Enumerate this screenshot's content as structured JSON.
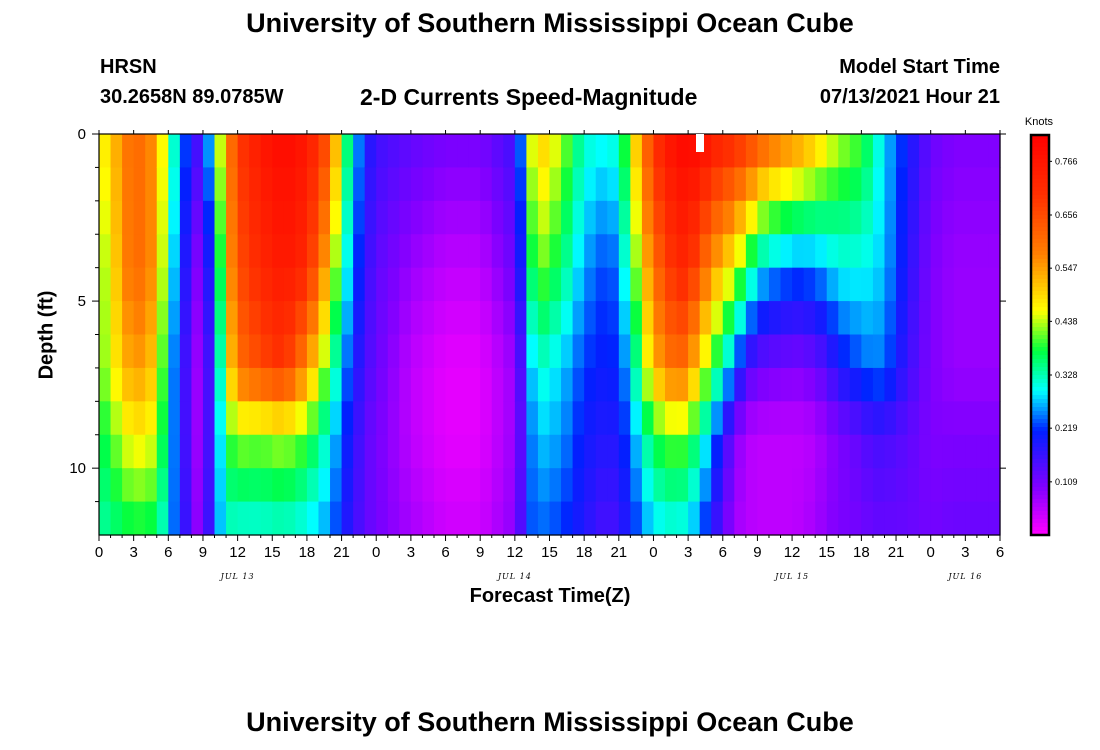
{
  "header": {
    "title": "University of Southern Mississippi Ocean Cube",
    "station": "HRSN",
    "coordinates": "30.2658N  89.0785W",
    "subtitle": "2-D Currents Speed-Magnitude",
    "model_start_label": "Model Start Time",
    "model_start_value": "07/13/2021 Hour 21"
  },
  "footer": {
    "title": "University of Southern Mississippi Ocean Cube"
  },
  "chart_data": {
    "type": "heatmap",
    "title": "2-D Currents Speed-Magnitude",
    "xlabel": "Forecast Time(Z)",
    "ylabel": "Depth (ft)",
    "x_range_hours": [
      0,
      78
    ],
    "y_range_ft": [
      0,
      12
    ],
    "x_ticks": [
      "0",
      "3",
      "6",
      "9",
      "12",
      "15",
      "18",
      "21",
      "0",
      "3",
      "6",
      "9",
      "12",
      "15",
      "18",
      "21",
      "0",
      "3",
      "6",
      "9",
      "12",
      "15",
      "18",
      "21",
      "0",
      "3",
      "6"
    ],
    "y_ticks": [
      "0",
      "5",
      "10"
    ],
    "date_labels": [
      {
        "label": "JUL 13",
        "hour": 12
      },
      {
        "label": "JUL 14",
        "hour": 36
      },
      {
        "label": "JUL 15",
        "hour": 60
      },
      {
        "label": "JUL 16",
        "hour": 75
      }
    ],
    "colorbar": {
      "title": "Knots",
      "min": 0.0,
      "max": 0.82,
      "ticks": [
        "0.766",
        "0.656",
        "0.547",
        "0.438",
        "0.328",
        "0.219",
        "0.109"
      ]
    },
    "profiles": {
      "hours": [
        0,
        3,
        5,
        6,
        7,
        8.5,
        9,
        10,
        11,
        12,
        14,
        16,
        18,
        20,
        21,
        22,
        23,
        24,
        27,
        30,
        33,
        36,
        36.5,
        37,
        38,
        40,
        42,
        44,
        45,
        46,
        48,
        50,
        51,
        52,
        53,
        55,
        56,
        57,
        58,
        60,
        61,
        62,
        63,
        64,
        66,
        67,
        68,
        70,
        72,
        74,
        75,
        76,
        78
      ],
      "depths_ft": [
        0,
        4,
        7,
        9,
        12
      ],
      "speed_knots": [
        [
          0.45,
          0.4,
          0.4,
          0.36,
          0.33
        ],
        [
          0.62,
          0.62,
          0.56,
          0.48,
          0.37
        ],
        [
          0.55,
          0.55,
          0.5,
          0.45,
          0.36
        ],
        [
          0.38,
          0.33,
          0.3,
          0.3,
          0.28
        ],
        [
          0.26,
          0.22,
          0.19,
          0.19,
          0.2
        ],
        [
          0.16,
          0.1,
          0.08,
          0.08,
          0.09
        ],
        [
          0.18,
          0.12,
          0.1,
          0.1,
          0.1
        ],
        [
          0.35,
          0.25,
          0.2,
          0.2,
          0.22
        ],
        [
          0.55,
          0.5,
          0.45,
          0.38,
          0.32
        ],
        [
          0.68,
          0.65,
          0.6,
          0.43,
          0.3
        ],
        [
          0.76,
          0.72,
          0.66,
          0.42,
          0.3
        ],
        [
          0.8,
          0.76,
          0.7,
          0.44,
          0.31
        ],
        [
          0.76,
          0.72,
          0.56,
          0.4,
          0.29
        ],
        [
          0.64,
          0.5,
          0.38,
          0.3,
          0.25
        ],
        [
          0.42,
          0.34,
          0.27,
          0.23,
          0.2
        ],
        [
          0.3,
          0.25,
          0.2,
          0.18,
          0.16
        ],
        [
          0.2,
          0.17,
          0.15,
          0.13,
          0.13
        ],
        [
          0.16,
          0.13,
          0.12,
          0.11,
          0.11
        ],
        [
          0.13,
          0.08,
          0.05,
          0.05,
          0.07
        ],
        [
          0.11,
          0.05,
          0.02,
          0.02,
          0.04
        ],
        [
          0.11,
          0.05,
          0.02,
          0.02,
          0.04
        ],
        [
          0.16,
          0.12,
          0.08,
          0.08,
          0.09
        ],
        [
          0.24,
          0.19,
          0.14,
          0.13,
          0.14
        ],
        [
          0.4,
          0.32,
          0.24,
          0.22,
          0.22
        ],
        [
          0.52,
          0.42,
          0.32,
          0.28,
          0.24
        ],
        [
          0.44,
          0.36,
          0.28,
          0.26,
          0.22
        ],
        [
          0.32,
          0.26,
          0.22,
          0.2,
          0.18
        ],
        [
          0.3,
          0.22,
          0.2,
          0.18,
          0.14
        ],
        [
          0.33,
          0.25,
          0.22,
          0.19,
          0.16
        ],
        [
          0.45,
          0.36,
          0.28,
          0.24,
          0.2
        ],
        [
          0.7,
          0.6,
          0.52,
          0.38,
          0.28
        ],
        [
          0.8,
          0.72,
          0.62,
          0.42,
          0.3
        ],
        [
          0.8,
          0.72,
          0.58,
          0.4,
          0.28
        ],
        [
          0.8,
          0.64,
          0.48,
          0.34,
          0.24
        ],
        [
          0.76,
          0.56,
          0.4,
          0.26,
          0.18
        ],
        [
          0.72,
          0.46,
          0.24,
          0.1,
          0.07
        ],
        [
          0.7,
          0.38,
          0.15,
          0.06,
          0.06
        ],
        [
          0.66,
          0.3,
          0.12,
          0.05,
          0.05
        ],
        [
          0.62,
          0.27,
          0.11,
          0.05,
          0.05
        ],
        [
          0.58,
          0.24,
          0.1,
          0.05,
          0.05
        ],
        [
          0.56,
          0.24,
          0.1,
          0.05,
          0.06
        ],
        [
          0.52,
          0.25,
          0.12,
          0.06,
          0.07
        ],
        [
          0.48,
          0.27,
          0.14,
          0.08,
          0.09
        ],
        [
          0.44,
          0.3,
          0.19,
          0.1,
          0.1
        ],
        [
          0.4,
          0.3,
          0.23,
          0.13,
          0.11
        ],
        [
          0.34,
          0.29,
          0.25,
          0.15,
          0.12
        ],
        [
          0.28,
          0.27,
          0.24,
          0.15,
          0.12
        ],
        [
          0.2,
          0.18,
          0.16,
          0.13,
          0.12
        ],
        [
          0.12,
          0.1,
          0.1,
          0.1,
          0.11
        ],
        [
          0.1,
          0.08,
          0.08,
          0.1,
          0.12
        ],
        [
          0.1,
          0.08,
          0.08,
          0.1,
          0.12
        ],
        [
          0.1,
          0.08,
          0.08,
          0.1,
          0.12
        ],
        [
          0.1,
          0.08,
          0.08,
          0.1,
          0.12
        ]
      ]
    }
  }
}
